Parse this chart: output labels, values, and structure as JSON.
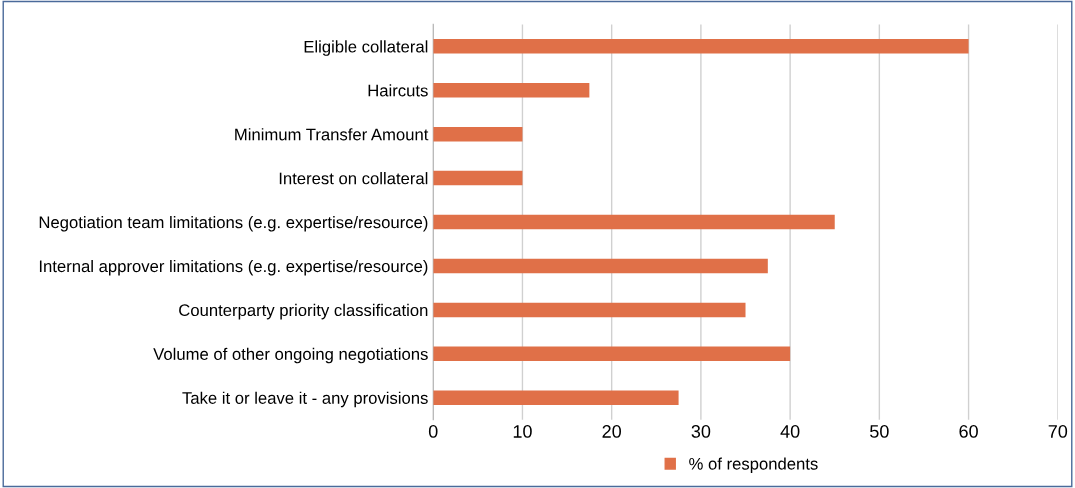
{
  "chart_data": {
    "type": "bar",
    "orientation": "horizontal",
    "categories": [
      "Eligible collateral",
      "Haircuts",
      "Minimum Transfer Amount",
      "Interest on collateral",
      "Negotiation team limitations (e.g. expertise/resource)",
      "Internal approver limitations (e.g. expertise/resource)",
      "Counterparty priority classification",
      "Volume of other ongoing negotiations",
      "Take it or leave it - any provisions"
    ],
    "series": [
      {
        "name": "% of respondents",
        "color": "#e07048",
        "values": [
          60,
          17.5,
          10,
          10,
          45,
          37.5,
          35,
          40,
          27.5
        ]
      }
    ],
    "xlim": [
      0,
      70
    ],
    "xticks": [
      0,
      10,
      20,
      30,
      40,
      50,
      60,
      70
    ],
    "grid": "x",
    "legend": "bottom"
  }
}
